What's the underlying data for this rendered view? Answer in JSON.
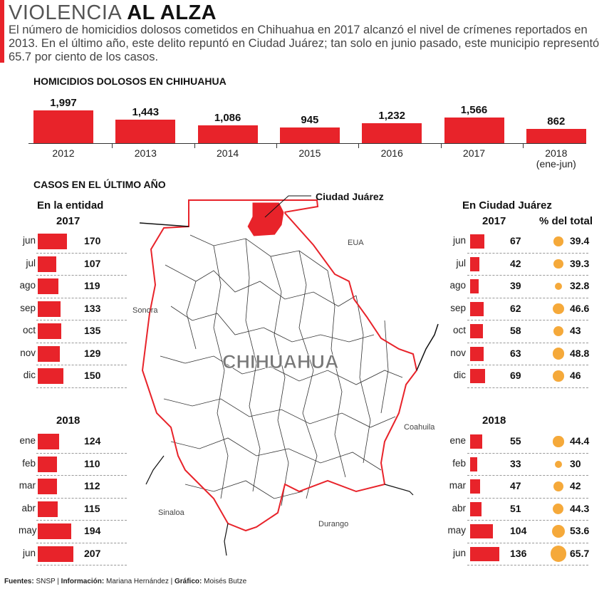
{
  "header": {
    "title_light": "VIOLENCIA",
    "title_bold": "AL ALZA",
    "subtitle": "El número de homicidios dolosos cometidos en Chihuahua en 2017 alcanzó el nivel de crímenes reportados en 2013. En el último año, este delito repuntó en Ciudad Juárez;  tan solo en junio pasado, este municipio representó 65.7 por ciento de los casos."
  },
  "colors": {
    "bar": "#e8232a",
    "circle": "#f5a93a",
    "border": "#e8232a"
  },
  "chart_data": [
    {
      "type": "bar",
      "title": "HOMICIDIOS DOLOSOS EN CHIHUAHUA",
      "categories": [
        "2012",
        "2013",
        "2014",
        "2015",
        "2016",
        "2017",
        "2018"
      ],
      "category_notes": [
        "",
        "",
        "",
        "",
        "",
        "",
        "(ene-jun)"
      ],
      "values": [
        1997,
        1443,
        1086,
        945,
        1232,
        1566,
        862
      ],
      "value_labels": [
        "1,997",
        "1,443",
        "1,086",
        "945",
        "1,232",
        "1,566",
        "862"
      ]
    },
    {
      "type": "bar",
      "orientation": "horizontal",
      "section": "CASOS EN EL ÚLTIMO AÑO",
      "title": "En la entidad",
      "groups": [
        {
          "year": "2017",
          "categories": [
            "jun",
            "jul",
            "ago",
            "sep",
            "oct",
            "nov",
            "dic"
          ],
          "values": [
            170,
            107,
            119,
            133,
            135,
            129,
            150
          ]
        },
        {
          "year": "2018",
          "categories": [
            "ene",
            "feb",
            "mar",
            "abr",
            "may",
            "jun"
          ],
          "values": [
            124,
            110,
            112,
            115,
            194,
            207
          ]
        }
      ]
    },
    {
      "type": "bar",
      "orientation": "horizontal",
      "title": "En Ciudad Juárez",
      "pct_header": "% del total",
      "groups": [
        {
          "year": "2017",
          "categories": [
            "jun",
            "jul",
            "ago",
            "sep",
            "oct",
            "nov",
            "dic"
          ],
          "values": [
            67,
            42,
            39,
            62,
            58,
            63,
            69
          ],
          "pct": [
            39.4,
            39.3,
            32.8,
            46.6,
            43,
            48.8,
            46
          ],
          "pct_labels": [
            "39.4",
            "39.3",
            "32.8",
            "46.6",
            "43",
            "48.8",
            "46"
          ]
        },
        {
          "year": "2018",
          "categories": [
            "ene",
            "feb",
            "mar",
            "abr",
            "may",
            "jun"
          ],
          "values": [
            55,
            33,
            47,
            51,
            104,
            136
          ],
          "pct": [
            44.4,
            30,
            42,
            44.3,
            53.6,
            65.7
          ],
          "pct_labels": [
            "44.4",
            "30",
            "42",
            "44.3",
            "53.6",
            "65.7"
          ]
        }
      ]
    }
  ],
  "map": {
    "state": "CHIHUAHUA",
    "callout": "Ciudad Juárez",
    "labels": [
      "EUA",
      "Sonora",
      "Coahuila",
      "Sinaloa",
      "Durango"
    ]
  },
  "footer": {
    "fuentes_k": "Fuentes:",
    "fuentes_v": "SNSP",
    "info_k": "Información:",
    "info_v": "Mariana Hernández",
    "graf_k": "Gráfico:",
    "graf_v": "Moisés Butze"
  }
}
